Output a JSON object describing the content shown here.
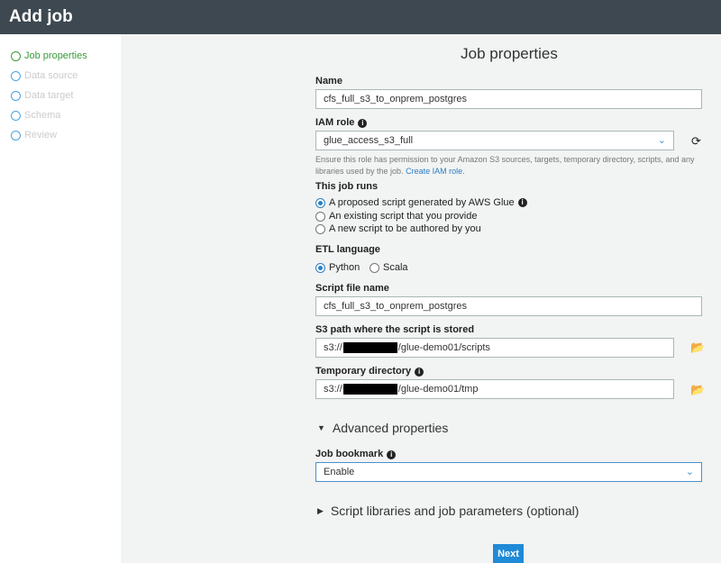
{
  "header": {
    "title": "Add job"
  },
  "sidebar": {
    "steps": [
      {
        "label": "Job properties",
        "active": true
      },
      {
        "label": "Data source"
      },
      {
        "label": "Data target"
      },
      {
        "label": "Schema"
      },
      {
        "label": "Review"
      }
    ]
  },
  "form": {
    "title": "Job properties",
    "name": {
      "label": "Name",
      "value": "cfs_full_s3_to_onprem_postgres"
    },
    "iam": {
      "label": "IAM role",
      "value": "glue_access_s3_full",
      "help": "Ensure this role has permission to your Amazon S3 sources, targets, temporary directory, scripts, and any libraries used by the job.",
      "link": "Create IAM role."
    },
    "runs": {
      "label": "This job runs",
      "options": [
        "A proposed script generated by AWS Glue",
        "An existing script that you provide",
        "A new script to be authored by you"
      ],
      "selected": 0
    },
    "etl": {
      "label": "ETL language",
      "options": [
        "Python",
        "Scala"
      ],
      "selected": 0
    },
    "script_name": {
      "label": "Script file name",
      "value": "cfs_full_s3_to_onprem_postgres"
    },
    "s3_path": {
      "label": "S3 path where the script is stored",
      "prefix": "s3://",
      "suffix": "/glue-demo01/scripts"
    },
    "temp_dir": {
      "label": "Temporary directory",
      "prefix": "s3://",
      "suffix": "/glue-demo01/tmp"
    },
    "advanced": {
      "label": "Advanced properties"
    },
    "bookmark": {
      "label": "Job bookmark",
      "value": "Enable"
    },
    "libraries": {
      "label": "Script libraries and job parameters (optional)"
    },
    "next": "Next"
  },
  "colors": {
    "header": "#3d4850",
    "accent": "#1f8ad6",
    "active_step": "#3b9a3b"
  }
}
